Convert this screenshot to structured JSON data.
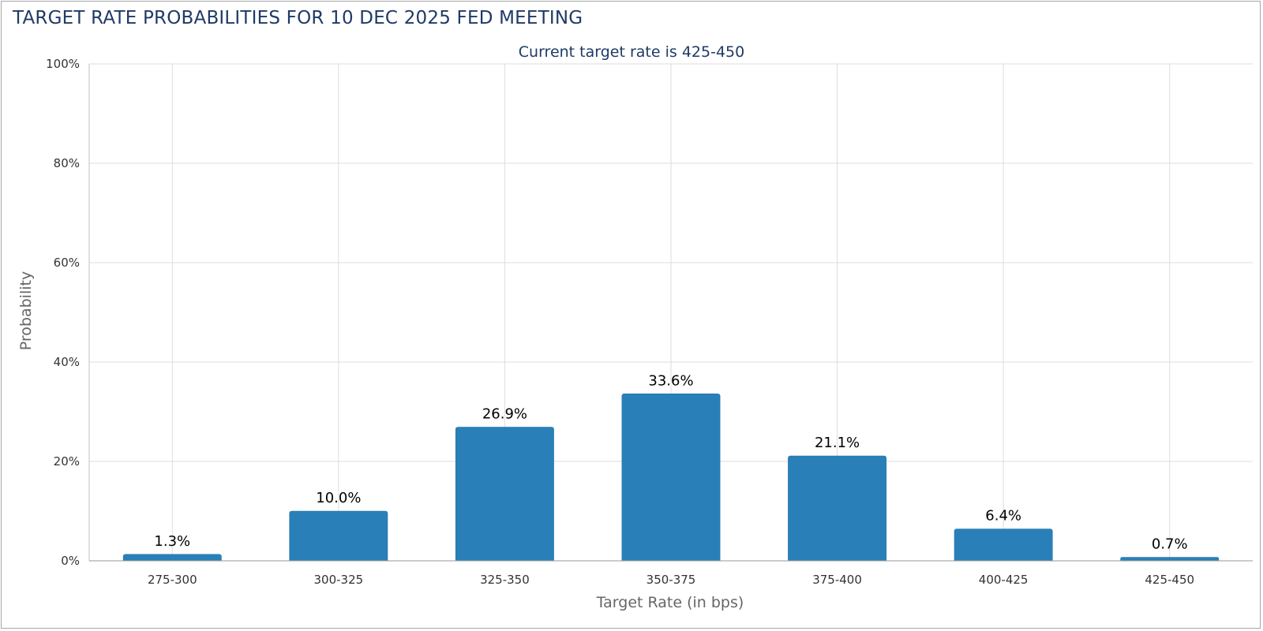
{
  "header": {
    "title": "TARGET RATE PROBABILITIES FOR 10 DEC 2025 FED MEETING"
  },
  "colors": {
    "bar": "#2980b9",
    "title": "#1f3a66",
    "grid": "#dddddd"
  },
  "chart_data": {
    "type": "bar",
    "title": "TARGET RATE PROBABILITIES FOR 10 DEC 2025 FED MEETING",
    "subtitle": "Current target rate is 425-450",
    "xlabel": "Target Rate (in bps)",
    "ylabel": "Probability",
    "categories": [
      "275-300",
      "300-325",
      "325-350",
      "350-375",
      "375-400",
      "400-425",
      "425-450"
    ],
    "values": [
      1.3,
      10.0,
      26.9,
      33.6,
      21.1,
      6.4,
      0.7
    ],
    "data_labels": [
      "1.3%",
      "10.0%",
      "26.9%",
      "33.6%",
      "21.1%",
      "6.4%",
      "0.7%"
    ],
    "ylim": [
      0,
      100
    ],
    "yticks": [
      0,
      20,
      40,
      60,
      80,
      100
    ],
    "ytick_labels": [
      "0%",
      "20%",
      "40%",
      "60%",
      "80%",
      "100%"
    ],
    "grid": true,
    "legend": "none"
  }
}
